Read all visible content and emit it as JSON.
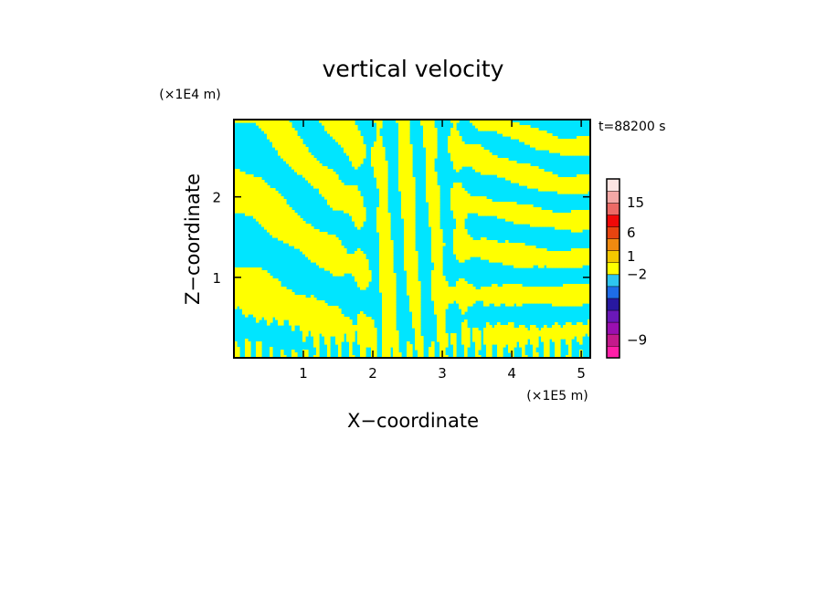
{
  "chart_data": {
    "type": "heatmap",
    "title": "vertical velocity",
    "xlabel": "X−coordinate",
    "ylabel": "Z−coordinate",
    "x_unit": "(×1E5 m)",
    "y_unit": "(×1E4 m)",
    "time_label": "t=88200 s",
    "xlim": [
      0,
      5.13
    ],
    "ylim": [
      0,
      2.96
    ],
    "x_ticks": [
      1,
      2,
      3,
      4,
      5
    ],
    "y_ticks": [
      1,
      2
    ],
    "x_tick_labels": [
      "1",
      "2",
      "3",
      "4",
      "5"
    ],
    "y_tick_labels": [
      "1",
      "2"
    ],
    "field_colors": {
      "positive": "#FFFF00",
      "negative": "#00E5FF"
    },
    "colorbar": {
      "levels": [
        "#FF1FA8",
        "#C41A8C",
        "#9A0FB0",
        "#6A18B8",
        "#2818A0",
        "#1E6CE8",
        "#2EC6F0",
        "#FFFF00",
        "#F4C800",
        "#F08A10",
        "#E84410",
        "#F00808",
        "#EC6A66",
        "#F4A8A6",
        "#FCE4E2"
      ],
      "tick_labels": [
        "15",
        "6",
        "1",
        "−2",
        "−9"
      ],
      "tick_values": [
        15,
        6,
        1,
        -2,
        -9
      ],
      "tick_level_index": [
        12.5,
        10,
        8,
        6.5,
        1
      ]
    }
  }
}
